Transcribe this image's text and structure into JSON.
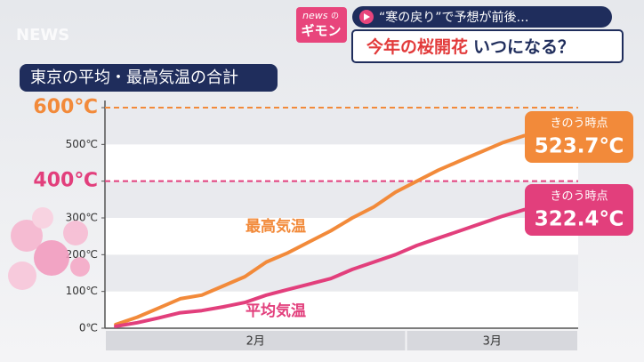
{
  "header": {
    "logo_top": "news",
    "logo_no": "の",
    "logo_bottom": "ギモン",
    "watermark": "NEWS",
    "subheadline": "“寒の戻り”で予想が前後…",
    "headline_emphasis": "今年の桜開花",
    "headline_rest": "いつになる？"
  },
  "chart_data": {
    "type": "line",
    "title": "東京の平均・最高気温の合計",
    "categories": [
      null,
      null,
      null,
      null,
      null,
      null,
      null,
      null,
      null,
      null,
      null,
      null,
      null,
      null,
      null,
      null,
      null,
      null,
      null,
      null
    ],
    "x_groups": [
      {
        "label": "2月",
        "count": 14
      },
      {
        "label": "3月",
        "count": 8
      }
    ],
    "series": [
      {
        "name": "最高気温",
        "color": "#f28a3a",
        "values": [
          10,
          30,
          55,
          80,
          90,
          115,
          140,
          180,
          205,
          235,
          265,
          300,
          330,
          370,
          400,
          430,
          455,
          480,
          505,
          523.7
        ],
        "end_caption": "きのう時点",
        "end_value_label": "523.7℃"
      },
      {
        "name": "平均気温",
        "color": "#e23f7c",
        "values": [
          5,
          15,
          28,
          42,
          48,
          58,
          70,
          90,
          105,
          120,
          135,
          160,
          180,
          200,
          225,
          245,
          265,
          285,
          305,
          322.4
        ],
        "end_caption": "きのう時点",
        "end_value_label": "322.4℃"
      }
    ],
    "ylim": [
      0,
      600
    ],
    "yticks": [
      {
        "value": 0,
        "label": "0℃"
      },
      {
        "value": 100,
        "label": "100℃"
      },
      {
        "value": 200,
        "label": "200℃"
      },
      {
        "value": 300,
        "label": "300℃"
      },
      {
        "value": 400,
        "label": "400℃"
      },
      {
        "value": 500,
        "label": "500℃"
      },
      {
        "value": 600,
        "label": "600℃"
      }
    ],
    "reference_lines": [
      {
        "value": 600,
        "color": "#f28a3a"
      },
      {
        "value": 400,
        "color": "#e23f7c"
      }
    ]
  }
}
